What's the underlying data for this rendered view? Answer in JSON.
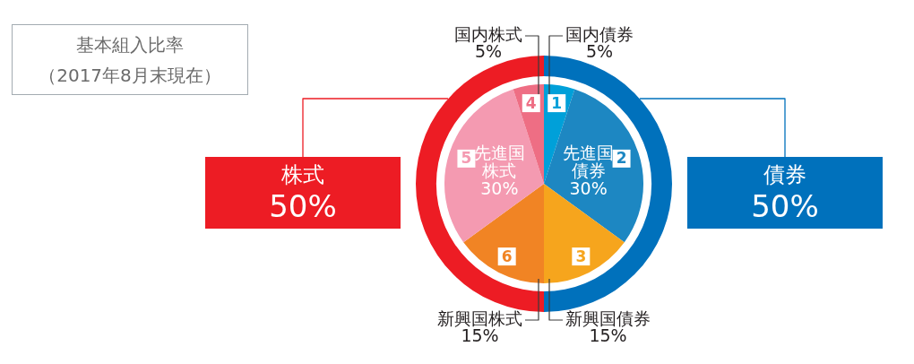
{
  "chart_data": [
    {
      "type": "donut",
      "title": "基本組入比率",
      "subtitle": "（2017年8月末現在）",
      "categories": [
        "債券",
        "株式"
      ],
      "values": [
        50,
        50
      ],
      "colors": [
        "#0071bc",
        "#ed1c24"
      ],
      "value_labels": [
        "50%",
        "50%"
      ]
    },
    {
      "type": "pie",
      "categories": [
        "国内債券",
        "先進国債券",
        "新興国債券",
        "新興国株式",
        "先進国株式",
        "国内株式"
      ],
      "values": [
        5,
        30,
        15,
        15,
        30,
        5
      ],
      "colors": [
        "#00a0d9",
        "#1d87c2",
        "#f6a51d",
        "#f18424",
        "#f49ab1",
        "#ee6e84"
      ],
      "value_labels": [
        "5%",
        "30%",
        "15%",
        "15%",
        "30%",
        "5%"
      ],
      "annotations": [
        {
          "text": "1",
          "x": "国内債券"
        },
        {
          "text": "2",
          "x": "先進国債券"
        },
        {
          "text": "3",
          "x": "新興国債券"
        },
        {
          "text": "6",
          "x": "新興国株式"
        },
        {
          "text": "5",
          "x": "先進国株式"
        },
        {
          "text": "4",
          "x": "国内株式"
        }
      ]
    }
  ]
}
